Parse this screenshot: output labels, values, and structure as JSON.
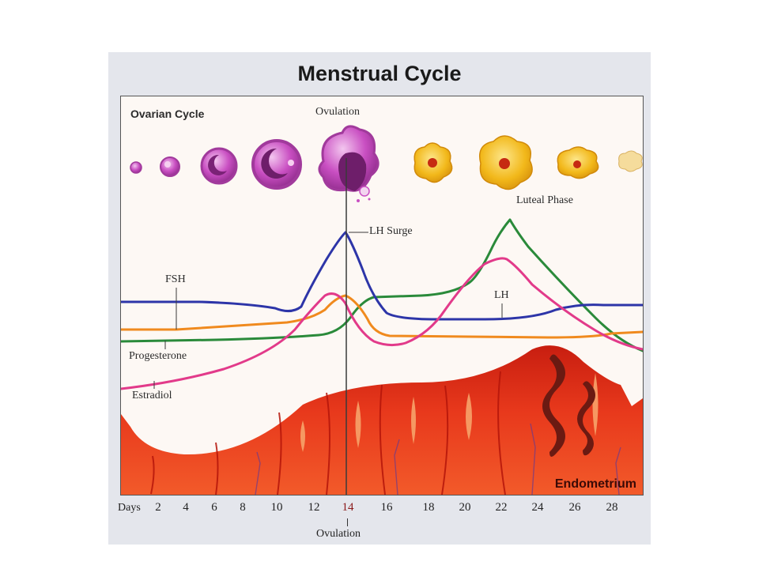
{
  "title": "Menstrual Cycle",
  "labels": {
    "ovarian_cycle": "Ovarian Cycle",
    "ovulation_top": "Ovulation",
    "luteal_phase": "Luteal Phase",
    "lh_surge": "LH Surge",
    "fsh": "FSH",
    "lh": "LH",
    "progesterone": "Progesterone",
    "estradiol": "Estradiol",
    "endometrium": "Endometrium",
    "ovulation_bottom": "Ovulation"
  },
  "axis": {
    "days_label": "Days",
    "ticks": [
      "2",
      "4",
      "6",
      "8",
      "10",
      "12",
      "14",
      "16",
      "18",
      "20",
      "22",
      "24",
      "26",
      "28"
    ],
    "highlight_tick": "14",
    "highlight_color": "#8a1a1a"
  },
  "colors": {
    "lh": "#2d35a8",
    "fsh": "#f08a1e",
    "progesterone": "#2a8a3a",
    "estradiol": "#e23a8a",
    "endometrium": "#e0321c",
    "follicle": "#c94fc2",
    "corpus_luteum": "#f2b81a"
  }
}
